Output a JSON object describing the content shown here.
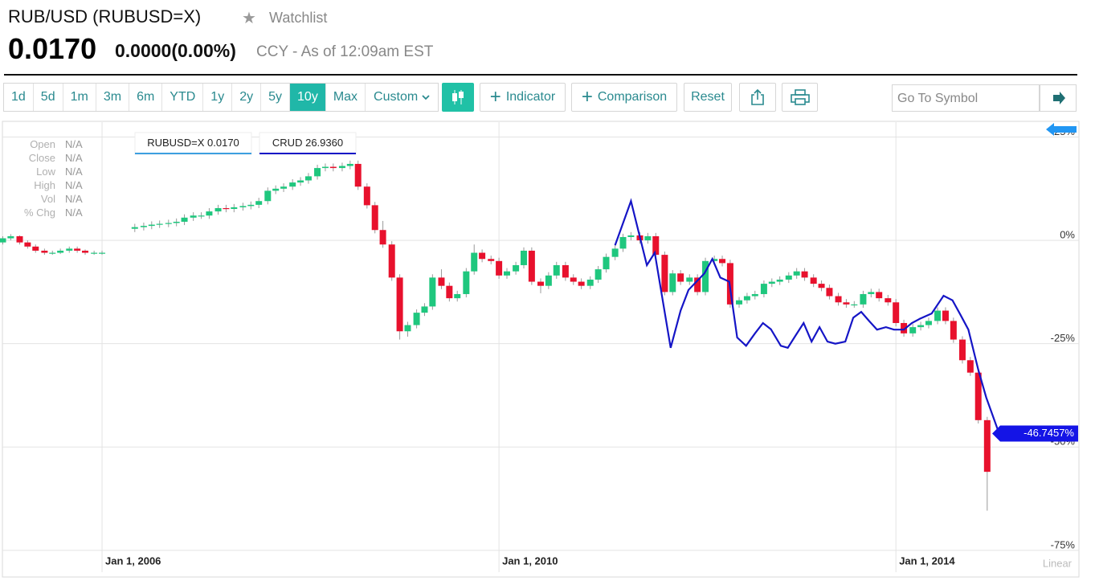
{
  "header": {
    "title": "RUB/USD (RUBUSD=X)",
    "watchlist": "Watchlist",
    "price": "0.0170",
    "change": "0.0000",
    "change_percent": "(0.00%)",
    "as_of": "CCY - As of 12:09am EST"
  },
  "toolbar": {
    "ranges": [
      "1d",
      "5d",
      "1m",
      "3m",
      "6m",
      "YTD",
      "1y",
      "2y",
      "5y",
      "10y",
      "Max"
    ],
    "active": "10y",
    "custom": "Custom",
    "indicator": "Indicator",
    "comparison": "Comparison",
    "reset": "Reset",
    "symbol_placeholder": "Go To Symbol"
  },
  "ohlc_panel": [
    {
      "label": "Open",
      "value": "N/A"
    },
    {
      "label": "Close",
      "value": "N/A"
    },
    {
      "label": "Low",
      "value": "N/A"
    },
    {
      "label": "High",
      "value": "N/A"
    },
    {
      "label": "Vol",
      "value": "N/A"
    },
    {
      "label": "% Chg",
      "value": "N/A"
    }
  ],
  "chart_data": {
    "type": "candlestick",
    "log_scale": false,
    "scale_label": "Linear",
    "grid": true,
    "xlim": [
      2005,
      2015.82
    ],
    "xticks": [
      {
        "value": 2006,
        "label": "Jan 1, 2006"
      },
      {
        "value": 2010,
        "label": "Jan 1, 2010"
      },
      {
        "value": 2014,
        "label": "Jan 1, 2014"
      }
    ],
    "ylim": [
      -76,
      28.6
    ],
    "yticks": [
      {
        "value": 25,
        "label": "25%"
      },
      {
        "value": 0,
        "label": "0%"
      },
      {
        "value": -25,
        "label": "-25%"
      },
      {
        "value": -50,
        "label": "-50%"
      },
      {
        "value": -75,
        "label": "-75%"
      }
    ],
    "series": [
      {
        "name": "RUBUSD=X",
        "legend_value": "0.0170",
        "type": "candlestick",
        "up_color": "#1fc77e",
        "down_color": "#e8112d",
        "legend_color": "#3d9fe0",
        "x": [
          2005,
          2005.08,
          2005.17,
          2005.25,
          2005.33,
          2005.42,
          2005.5,
          2005.58,
          2005.67,
          2005.75,
          2005.83,
          2005.92,
          2006,
          2006.33,
          2006.42,
          2006.5,
          2006.58,
          2006.67,
          2006.75,
          2006.83,
          2006.92,
          2007,
          2007.08,
          2007.17,
          2007.25,
          2007.33,
          2007.42,
          2007.5,
          2007.58,
          2007.67,
          2007.75,
          2007.83,
          2007.92,
          2008,
          2008.08,
          2008.17,
          2008.25,
          2008.33,
          2008.42,
          2008.5,
          2008.58,
          2008.67,
          2008.75,
          2008.83,
          2008.92,
          2009,
          2009.08,
          2009.17,
          2009.25,
          2009.33,
          2009.42,
          2009.5,
          2009.58,
          2009.67,
          2009.75,
          2009.83,
          2009.92,
          2010,
          2010.08,
          2010.17,
          2010.25,
          2010.33,
          2010.42,
          2010.5,
          2010.58,
          2010.67,
          2010.75,
          2010.83,
          2010.92,
          2011,
          2011.08,
          2011.17,
          2011.25,
          2011.33,
          2011.42,
          2011.5,
          2011.58,
          2011.67,
          2011.75,
          2011.83,
          2011.92,
          2012,
          2012.08,
          2012.17,
          2012.25,
          2012.33,
          2012.42,
          2012.5,
          2012.58,
          2012.67,
          2012.75,
          2012.83,
          2012.92,
          2013,
          2013.08,
          2013.17,
          2013.25,
          2013.33,
          2013.42,
          2013.5,
          2013.58,
          2013.67,
          2013.75,
          2013.83,
          2013.92,
          2014,
          2014.08,
          2014.17,
          2014.25,
          2014.33,
          2014.42,
          2014.5,
          2014.58,
          2014.67,
          2014.75,
          2014.83,
          2014.92
        ],
        "open": [
          -0.5,
          0.5,
          1,
          -0.5,
          -1.5,
          -2.5,
          -3,
          -3,
          -2.5,
          -2,
          -2.5,
          -3,
          -3,
          2.8,
          3.2,
          3.5,
          3.8,
          4,
          4.2,
          4.5,
          5.5,
          6,
          6,
          7,
          7.8,
          7.6,
          8,
          8.3,
          8.6,
          9.5,
          12,
          12.5,
          13,
          14,
          14.5,
          15.5,
          17.5,
          17.8,
          17.5,
          18,
          18.5,
          13,
          8.5,
          2.5,
          -1,
          -9,
          -22,
          -20.5,
          -17.5,
          -16,
          -9,
          -11,
          -14,
          -13,
          -7.5,
          -3,
          -4.5,
          -5,
          -8.5,
          -7.5,
          -6,
          -2.5,
          -10,
          -11,
          -8.5,
          -6,
          -9,
          -10,
          -11,
          -9.5,
          -7,
          -4,
          -2,
          0.8,
          1.2,
          0,
          1,
          -3.5,
          -12.5,
          -8,
          -10,
          -9,
          -12.5,
          -5,
          -4.5,
          -5.5,
          -15.5,
          -14.5,
          -13.5,
          -13,
          -10.5,
          -10,
          -9.5,
          -8.5,
          -7.5,
          -9,
          -10.5,
          -11.5,
          -13.5,
          -15,
          -15.5,
          -15.5,
          -13,
          -12.5,
          -14,
          -15,
          -20,
          -22.5,
          -21,
          -20.5,
          -19.5,
          -17,
          -19.5,
          -24,
          -29,
          -32,
          -43.5
        ],
        "high": [
          1,
          1.5,
          1.2,
          0,
          -1,
          -2,
          -2.5,
          -2,
          -1.5,
          -1.5,
          -2.2,
          -2.5,
          -2.5,
          4,
          4.3,
          4.6,
          4.8,
          5,
          5.3,
          6.3,
          6.8,
          6.8,
          7.8,
          8.6,
          8.6,
          8.8,
          9.1,
          9.4,
          10.3,
          12.8,
          13.3,
          13.8,
          14.8,
          15.3,
          16.3,
          18.3,
          18.6,
          18.6,
          18.8,
          19.3,
          19.3,
          13.8,
          9.3,
          4.7,
          -0.2,
          -8.2,
          -19.7,
          -16.7,
          -15.2,
          -8.2,
          -7,
          -10.2,
          -12.2,
          -6.7,
          -1,
          -2.2,
          -3.7,
          -4.2,
          -6.7,
          -5.2,
          -1.7,
          -1.7,
          -9.2,
          -7.7,
          -5.2,
          -5.2,
          -8.2,
          -9.2,
          -8.7,
          -6.2,
          -3.2,
          -1.2,
          1.6,
          2,
          2,
          1.8,
          1.8,
          -2.7,
          -7.2,
          -7.2,
          -8.2,
          -8.2,
          -4.2,
          -3.7,
          -3.7,
          -4.7,
          -13.7,
          -12.7,
          -12.2,
          -9.7,
          -9.2,
          -8.7,
          -7.7,
          -6.7,
          -6.7,
          -8.2,
          -9.7,
          -10.7,
          -12.7,
          -14.2,
          -14.7,
          -12.2,
          -11.7,
          -11.7,
          -13.2,
          -14.2,
          -19.2,
          -20.2,
          -19.7,
          -18.7,
          -16.2,
          -16.2,
          -18.7,
          -23.2,
          -28.2,
          -31.2,
          -42.7
        ],
        "low": [
          -1,
          0,
          -1,
          -2,
          -3,
          -3.5,
          -3.5,
          -3.3,
          -3,
          -3,
          -3.5,
          -3.5,
          -3.5,
          2,
          2.4,
          2.7,
          3,
          3.2,
          3.4,
          3.7,
          4.7,
          5.2,
          5.2,
          6.2,
          6.8,
          6.8,
          7.2,
          7.5,
          7.8,
          8.7,
          11.2,
          11.7,
          12.2,
          13.2,
          13.7,
          14.7,
          16.7,
          16.7,
          16.7,
          17.2,
          12.2,
          7.7,
          1.7,
          -1.8,
          -9.8,
          -24,
          -23.3,
          -21.3,
          -18.3,
          -16.8,
          -11.8,
          -14.8,
          -14.8,
          -13.8,
          -8.3,
          -5.3,
          -5.8,
          -9.3,
          -9.3,
          -8.3,
          -6.8,
          -10.8,
          -12.8,
          -11.8,
          -9.3,
          -9.8,
          -10.8,
          -11.8,
          -11.8,
          -10.3,
          -7.8,
          -4.8,
          -2.8,
          0,
          -0.8,
          -0.8,
          -4.3,
          -13.3,
          -13.3,
          -10.8,
          -10.8,
          -13.3,
          -13.3,
          -5.8,
          -6.3,
          -16.3,
          -16.3,
          -15.3,
          -14.3,
          -13.8,
          -11.3,
          -10.8,
          -10.3,
          -9.3,
          -9.8,
          -11.3,
          -12.3,
          -14.3,
          -15.8,
          -16.3,
          -16.3,
          -16.3,
          -13.8,
          -14.8,
          -15.8,
          -20.8,
          -23.3,
          -23.3,
          -21.8,
          -21.3,
          -20.3,
          -20.3,
          -24.8,
          -29.8,
          -32.8,
          -44.3,
          -65.4
        ],
        "close": [
          0.5,
          1,
          -0.5,
          -1.5,
          -2.5,
          -3,
          -3,
          -2.5,
          -2,
          -2.5,
          -3,
          -3,
          -3,
          3.2,
          3.5,
          3.8,
          4,
          4.2,
          4.5,
          5.5,
          6,
          6,
          7,
          7.8,
          7.6,
          8,
          8.3,
          8.6,
          9.5,
          12,
          12.5,
          13,
          14,
          14.5,
          15.5,
          17.5,
          17.8,
          17.5,
          18,
          18.5,
          13,
          8.5,
          2.5,
          -1,
          -9,
          -22,
          -20.5,
          -17.5,
          -16,
          -9,
          -11,
          -14,
          -13,
          -7.5,
          -3,
          -4.5,
          -5,
          -8.5,
          -7.5,
          -6,
          -2.5,
          -10,
          -11,
          -8.5,
          -6,
          -9,
          -10,
          -11,
          -9.5,
          -7,
          -4,
          -2,
          0.8,
          1.2,
          0,
          1,
          -3.5,
          -12.5,
          -8,
          -10,
          -9,
          -12.5,
          -5,
          -4.5,
          -5.5,
          -15.5,
          -14.5,
          -13.5,
          -13,
          -10.5,
          -10,
          -9.5,
          -8.5,
          -7.5,
          -9,
          -10.5,
          -11.5,
          -13.5,
          -15,
          -15.5,
          -15.5,
          -13,
          -12.5,
          -14,
          -15,
          -20,
          -22.5,
          -21,
          -20.5,
          -19.5,
          -17,
          -19.5,
          -24,
          -29,
          -32,
          -43.5,
          -56
        ]
      },
      {
        "name": "CRUD",
        "legend_value": "26.9360",
        "type": "line",
        "color": "#1515c6",
        "last_value_label": "-46.7457%",
        "x": [
          2011.17,
          2011.33,
          2011.49,
          2011.57,
          2011.73,
          2011.83,
          2011.91,
          2011.99,
          2012.07,
          2012.15,
          2012.23,
          2012.32,
          2012.4,
          2012.49,
          2012.58,
          2012.66,
          2012.74,
          2012.84,
          2012.91,
          2012.99,
          2013.07,
          2013.15,
          2013.23,
          2013.31,
          2013.39,
          2013.49,
          2013.57,
          2013.65,
          2013.73,
          2013.81,
          2013.9,
          2013.98,
          2014.08,
          2014.16,
          2014.24,
          2014.36,
          2014.48,
          2014.57,
          2014.65,
          2014.73,
          2014.83,
          2014.91,
          2015.04
        ],
        "values": [
          -1.2,
          9.5,
          -6,
          -3,
          -26,
          -17,
          -12,
          -10,
          -8,
          -4.5,
          -9,
          -10,
          -23.5,
          -25.5,
          -22.5,
          -20,
          -21.5,
          -25.5,
          -26,
          -23,
          -20,
          -24.5,
          -21,
          -24.5,
          -25,
          -24.5,
          -18.7,
          -17.3,
          -19.5,
          -21.6,
          -21,
          -21.6,
          -21.6,
          -20,
          -19,
          -17.7,
          -13.4,
          -14.5,
          -18,
          -21.6,
          -31.3,
          -38,
          -46.7457
        ]
      }
    ]
  }
}
